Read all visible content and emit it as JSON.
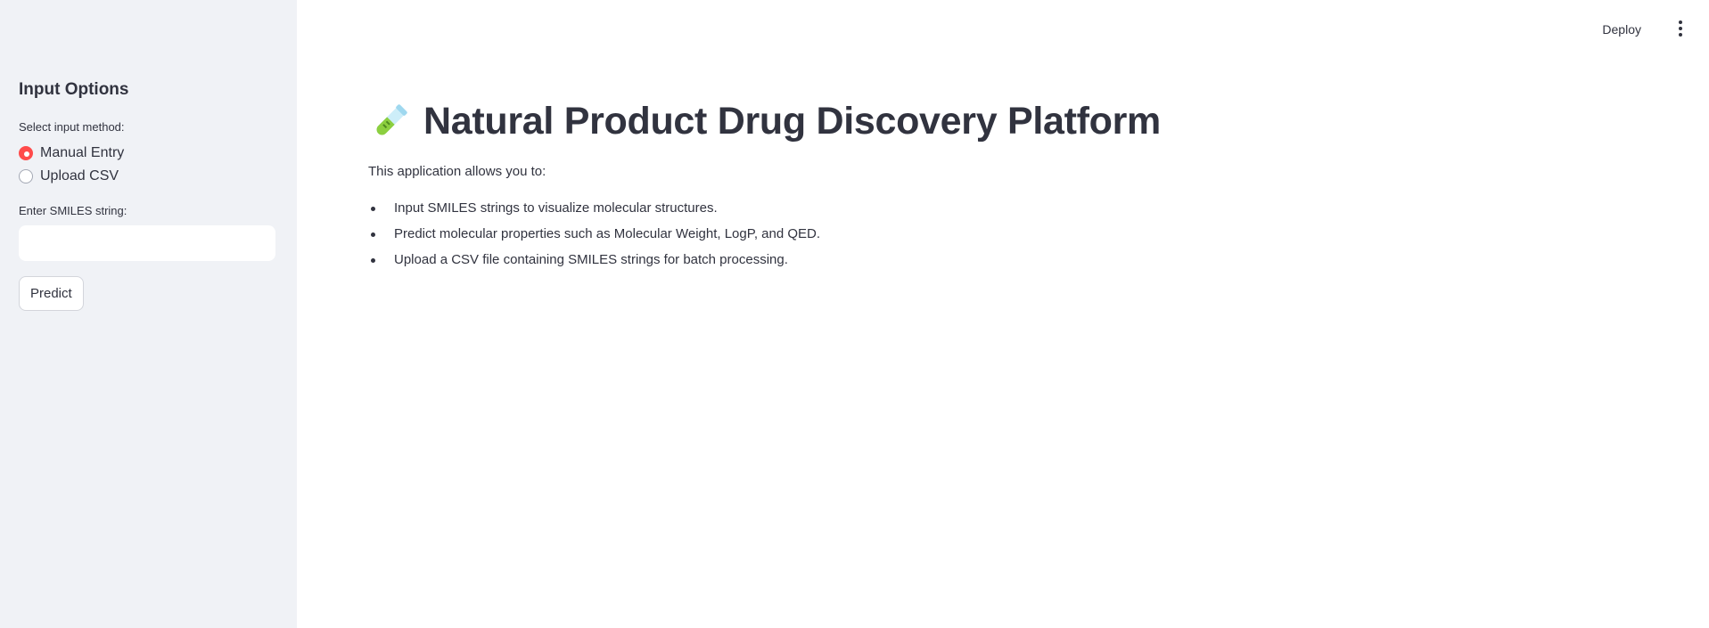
{
  "sidebar": {
    "title": "Input Options",
    "input_method_label": "Select input method:",
    "input_methods": [
      {
        "label": "Manual Entry",
        "selected": true
      },
      {
        "label": "Upload CSV",
        "selected": false
      }
    ],
    "smiles_label": "Enter SMILES string:",
    "smiles_value": "",
    "smiles_placeholder": "",
    "predict_label": "Predict"
  },
  "header": {
    "deploy_label": "Deploy",
    "menu_icon": "more-vertical-icon"
  },
  "main": {
    "title_icon": "test-tube-icon",
    "title": "Natural Product Drug Discovery Platform",
    "intro": "This application allows you to:",
    "features": [
      "Input SMILES strings to visualize molecular structures.",
      "Predict molecular properties such as Molecular Weight, LogP, and QED.",
      "Upload a CSV file containing SMILES strings for batch processing."
    ]
  },
  "colors": {
    "sidebar_bg": "#f0f2f6",
    "accent": "#ff4b4b",
    "text": "#31333f"
  }
}
